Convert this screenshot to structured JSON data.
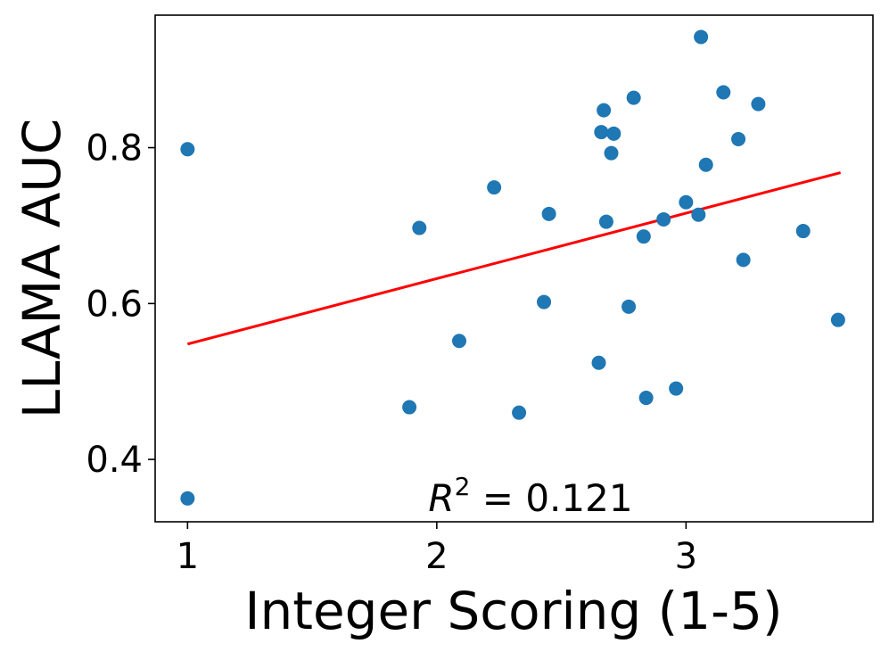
{
  "chart_data": {
    "type": "scatter",
    "xlabel": "Integer Scoring (1-5)",
    "ylabel": "LLAMA AUC",
    "xlim": [
      0.87,
      3.75
    ],
    "ylim": [
      0.32,
      0.97
    ],
    "xticks": [
      1,
      2,
      3
    ],
    "xtick_labels": [
      "1",
      "2",
      "3"
    ],
    "yticks": [
      0.4,
      0.6,
      0.8
    ],
    "ytick_labels": [
      "0.4",
      "0.6",
      "0.8"
    ],
    "grid": false,
    "point_color": "#1f77b4",
    "points": [
      {
        "x": 1.0,
        "y": 0.798
      },
      {
        "x": 1.0,
        "y": 0.35
      },
      {
        "x": 1.89,
        "y": 0.467
      },
      {
        "x": 1.93,
        "y": 0.697
      },
      {
        "x": 2.09,
        "y": 0.552
      },
      {
        "x": 2.23,
        "y": 0.749
      },
      {
        "x": 2.33,
        "y": 0.46
      },
      {
        "x": 2.43,
        "y": 0.602
      },
      {
        "x": 2.45,
        "y": 0.715
      },
      {
        "x": 2.65,
        "y": 0.524
      },
      {
        "x": 2.66,
        "y": 0.82
      },
      {
        "x": 2.67,
        "y": 0.848
      },
      {
        "x": 2.68,
        "y": 0.705
      },
      {
        "x": 2.7,
        "y": 0.793
      },
      {
        "x": 2.71,
        "y": 0.818
      },
      {
        "x": 2.77,
        "y": 0.596
      },
      {
        "x": 2.79,
        "y": 0.864
      },
      {
        "x": 2.83,
        "y": 0.686
      },
      {
        "x": 2.84,
        "y": 0.479
      },
      {
        "x": 2.91,
        "y": 0.708
      },
      {
        "x": 2.96,
        "y": 0.491
      },
      {
        "x": 3.0,
        "y": 0.73
      },
      {
        "x": 3.05,
        "y": 0.714
      },
      {
        "x": 3.06,
        "y": 0.942
      },
      {
        "x": 3.08,
        "y": 0.778
      },
      {
        "x": 3.15,
        "y": 0.871
      },
      {
        "x": 3.21,
        "y": 0.811
      },
      {
        "x": 3.23,
        "y": 0.656
      },
      {
        "x": 3.29,
        "y": 0.856
      },
      {
        "x": 3.47,
        "y": 0.693
      },
      {
        "x": 3.61,
        "y": 0.579
      }
    ],
    "fit_line": {
      "color": "#ff0000",
      "x": [
        1.0,
        3.62
      ],
      "y": [
        0.548,
        0.768
      ]
    },
    "annotation": {
      "symbol": "R",
      "superscript": "2",
      "text": " = 0.121"
    }
  }
}
